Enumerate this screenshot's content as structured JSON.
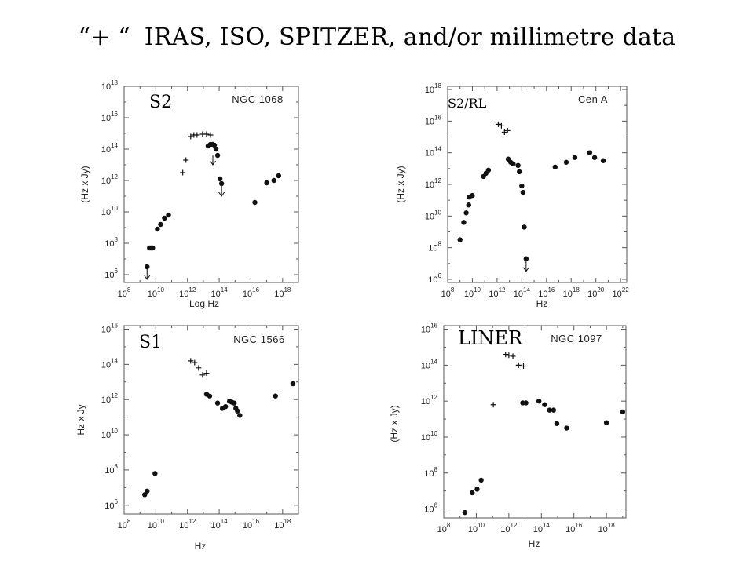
{
  "slide": {
    "title_prefix": "“+ “",
    "title_main": "IRAS, ISO, SPITZER, and/or millimetre data"
  },
  "chart_data": [
    {
      "type": "scatter",
      "class_label": "S2",
      "object": "NGC 1068",
      "xlabel": "Log Hz",
      "ylabel": "(Hz x Jy)",
      "xscale": "log",
      "yscale": "log",
      "xlim": [
        8,
        19
      ],
      "ylim": [
        5.5,
        18
      ],
      "xticks": [
        8,
        10,
        12,
        14,
        16,
        18
      ],
      "yticks": [
        6,
        8,
        10,
        12,
        14,
        16,
        18
      ],
      "series": [
        {
          "marker": "dot",
          "points": [
            [
              9.45,
              6.5
            ],
            [
              9.6,
              7.7
            ],
            [
              9.7,
              7.7
            ],
            [
              9.8,
              7.7
            ],
            [
              10.1,
              8.9
            ],
            [
              10.3,
              9.2
            ],
            [
              10.55,
              9.6
            ],
            [
              10.8,
              9.8
            ],
            [
              13.3,
              14.2
            ],
            [
              13.45,
              14.3
            ],
            [
              13.6,
              14.3
            ],
            [
              13.7,
              14.25
            ],
            [
              13.8,
              14.0
            ],
            [
              13.9,
              13.6
            ],
            [
              14.05,
              12.1
            ],
            [
              14.15,
              11.8
            ],
            [
              16.25,
              10.6
            ],
            [
              17.0,
              11.85
            ],
            [
              17.45,
              12.0
            ],
            [
              17.75,
              12.3
            ]
          ]
        },
        {
          "marker": "plus",
          "points": [
            [
              11.7,
              12.5
            ],
            [
              11.9,
              13.3
            ],
            [
              12.2,
              14.8
            ],
            [
              12.4,
              14.9
            ],
            [
              12.6,
              14.9
            ],
            [
              12.95,
              14.95
            ],
            [
              13.2,
              14.95
            ],
            [
              13.45,
              14.9
            ]
          ]
        },
        {
          "marker": "upper-limit",
          "points": [
            [
              9.45,
              6.5
            ],
            [
              13.6,
              13.8
            ],
            [
              14.15,
              11.8
            ]
          ]
        }
      ]
    },
    {
      "type": "scatter",
      "class_label": "S2/RL",
      "object": "Cen A",
      "xlabel": "Hz",
      "ylabel": "(Hz x Jy)",
      "xscale": "log",
      "yscale": "log",
      "xlim": [
        8,
        22.5
      ],
      "ylim": [
        5.8,
        18.2
      ],
      "xticks": [
        8,
        10,
        12,
        14,
        16,
        18,
        20,
        22
      ],
      "yticks": [
        6,
        8,
        10,
        12,
        14,
        16,
        18
      ],
      "series": [
        {
          "marker": "dot",
          "points": [
            [
              9.0,
              8.5
            ],
            [
              9.3,
              9.6
            ],
            [
              9.5,
              10.2
            ],
            [
              9.7,
              10.7
            ],
            [
              9.75,
              11.2
            ],
            [
              10.0,
              11.3
            ],
            [
              10.9,
              12.5
            ],
            [
              11.1,
              12.7
            ],
            [
              11.3,
              12.9
            ],
            [
              12.9,
              13.6
            ],
            [
              13.1,
              13.4
            ],
            [
              13.3,
              13.3
            ],
            [
              13.7,
              13.2
            ],
            [
              13.8,
              12.8
            ],
            [
              14.0,
              11.9
            ],
            [
              14.1,
              11.5
            ],
            [
              14.2,
              9.3
            ],
            [
              14.35,
              7.3
            ],
            [
              16.7,
              13.1
            ],
            [
              17.6,
              13.4
            ],
            [
              18.3,
              13.7
            ],
            [
              19.5,
              14.0
            ],
            [
              19.9,
              13.7
            ],
            [
              20.6,
              13.5
            ]
          ]
        },
        {
          "marker": "plus",
          "points": [
            [
              12.1,
              15.8
            ],
            [
              12.35,
              15.7
            ],
            [
              12.6,
              15.3
            ],
            [
              12.85,
              15.4
            ]
          ]
        },
        {
          "marker": "upper-limit",
          "points": [
            [
              14.35,
              7.3
            ]
          ]
        }
      ]
    },
    {
      "type": "scatter",
      "class_label": "S1",
      "object": "NGC 1566",
      "xlabel": "Hz",
      "ylabel": "Hz x Jy",
      "xscale": "log",
      "yscale": "log",
      "xlim": [
        8,
        19
      ],
      "ylim": [
        5.5,
        16.2
      ],
      "xticks": [
        8,
        10,
        12,
        14,
        16,
        18
      ],
      "yticks": [
        6,
        8,
        10,
        12,
        14,
        16
      ],
      "series": [
        {
          "marker": "dot",
          "points": [
            [
              9.3,
              6.6
            ],
            [
              9.45,
              6.8
            ],
            [
              9.95,
              7.8
            ],
            [
              13.2,
              12.3
            ],
            [
              13.4,
              12.2
            ],
            [
              13.9,
              11.8
            ],
            [
              14.2,
              11.5
            ],
            [
              14.4,
              11.6
            ],
            [
              14.65,
              11.9
            ],
            [
              14.8,
              11.85
            ],
            [
              14.95,
              11.8
            ],
            [
              15.05,
              11.5
            ],
            [
              15.15,
              11.35
            ],
            [
              15.3,
              11.1
            ],
            [
              17.55,
              12.2
            ],
            [
              18.65,
              12.9
            ]
          ]
        },
        {
          "marker": "plus",
          "points": [
            [
              12.2,
              14.2
            ],
            [
              12.45,
              14.1
            ],
            [
              12.7,
              13.8
            ],
            [
              12.95,
              13.4
            ],
            [
              13.2,
              13.5
            ]
          ]
        }
      ]
    },
    {
      "type": "scatter",
      "class_label": "LINER",
      "object": "NGC 1097",
      "xlabel": "Hz",
      "ylabel": "(Hz x Jy)",
      "xscale": "log",
      "yscale": "log",
      "xlim": [
        8,
        19.2
      ],
      "ylim": [
        5.5,
        16.2
      ],
      "xticks": [
        8,
        10,
        12,
        14,
        16,
        18
      ],
      "yticks": [
        6,
        8,
        10,
        12,
        14,
        16
      ],
      "series": [
        {
          "marker": "dot",
          "points": [
            [
              9.3,
              5.8
            ],
            [
              9.75,
              6.9
            ],
            [
              10.05,
              7.1
            ],
            [
              10.3,
              7.6
            ],
            [
              12.85,
              11.9
            ],
            [
              13.05,
              11.9
            ],
            [
              13.85,
              12.0
            ],
            [
              14.2,
              11.8
            ],
            [
              14.5,
              11.5
            ],
            [
              14.75,
              11.5
            ],
            [
              14.95,
              10.75
            ],
            [
              15.55,
              10.5
            ],
            [
              18.0,
              10.8
            ],
            [
              19.0,
              11.4
            ]
          ]
        },
        {
          "marker": "plus",
          "points": [
            [
              11.8,
              14.6
            ],
            [
              12.0,
              14.55
            ],
            [
              12.25,
              14.5
            ],
            [
              12.6,
              14.0
            ],
            [
              12.9,
              13.95
            ],
            [
              11.05,
              11.8
            ]
          ]
        }
      ]
    }
  ]
}
